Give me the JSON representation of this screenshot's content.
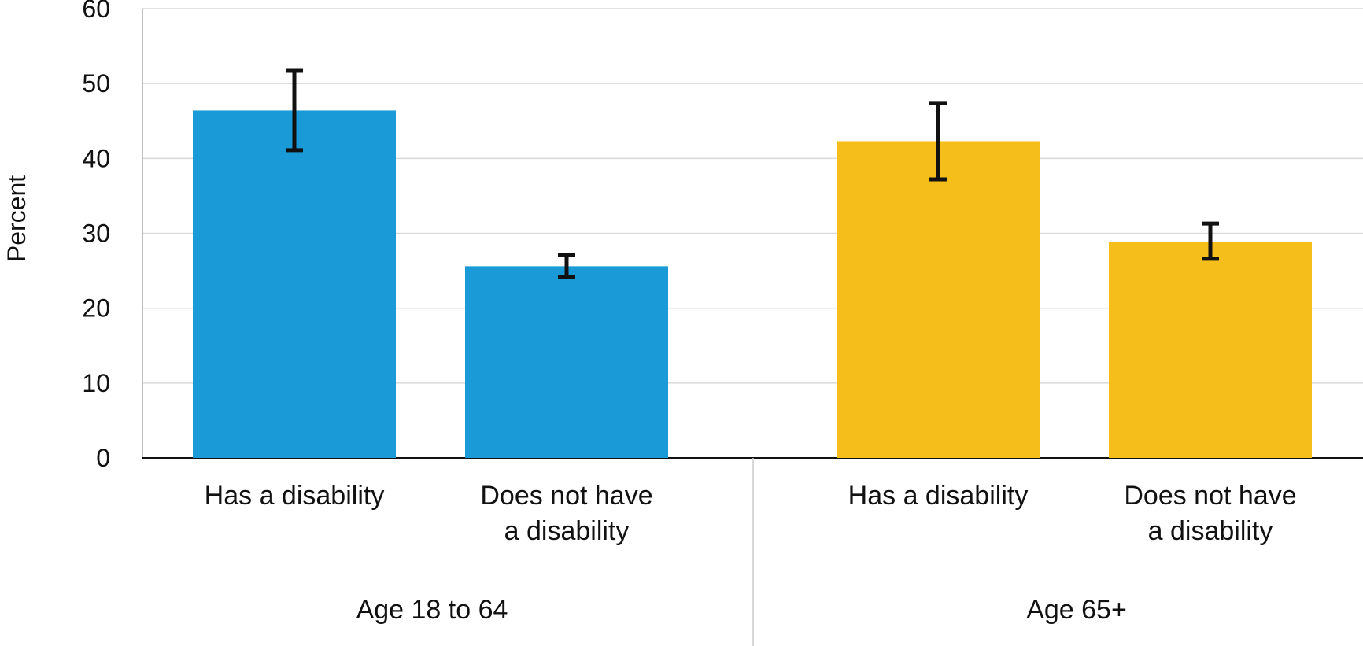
{
  "chart_data": {
    "type": "bar",
    "title": "",
    "xlabel": "",
    "ylabel": "Percent",
    "ylim": [
      0,
      60
    ],
    "yticks": [
      0,
      10,
      20,
      30,
      40,
      50,
      60
    ],
    "grid": true,
    "legend": "none",
    "categories": [
      {
        "label_lines": [
          "Has a disability"
        ],
        "group": "Age 18 to 64"
      },
      {
        "label_lines": [
          "Does not have",
          "a disability"
        ],
        "group": "Age 18 to 64"
      },
      {
        "label_lines": [
          "Has a disability"
        ],
        "group": "Age 65+"
      },
      {
        "label_lines": [
          "Does not have",
          "a disability"
        ],
        "group": "Age 65+"
      }
    ],
    "groups": [
      "Age 18 to 64",
      "Age 65+"
    ],
    "values": [
      46.4,
      25.6,
      42.3,
      28.9
    ],
    "error_low": [
      41.1,
      24.2,
      37.2,
      26.6
    ],
    "error_high": [
      51.7,
      27.1,
      47.4,
      31.3
    ],
    "colors": [
      "#1a9ad7",
      "#1a9ad7",
      "#f6be1a",
      "#f6be1a"
    ],
    "error_bar_color": "#111111"
  }
}
